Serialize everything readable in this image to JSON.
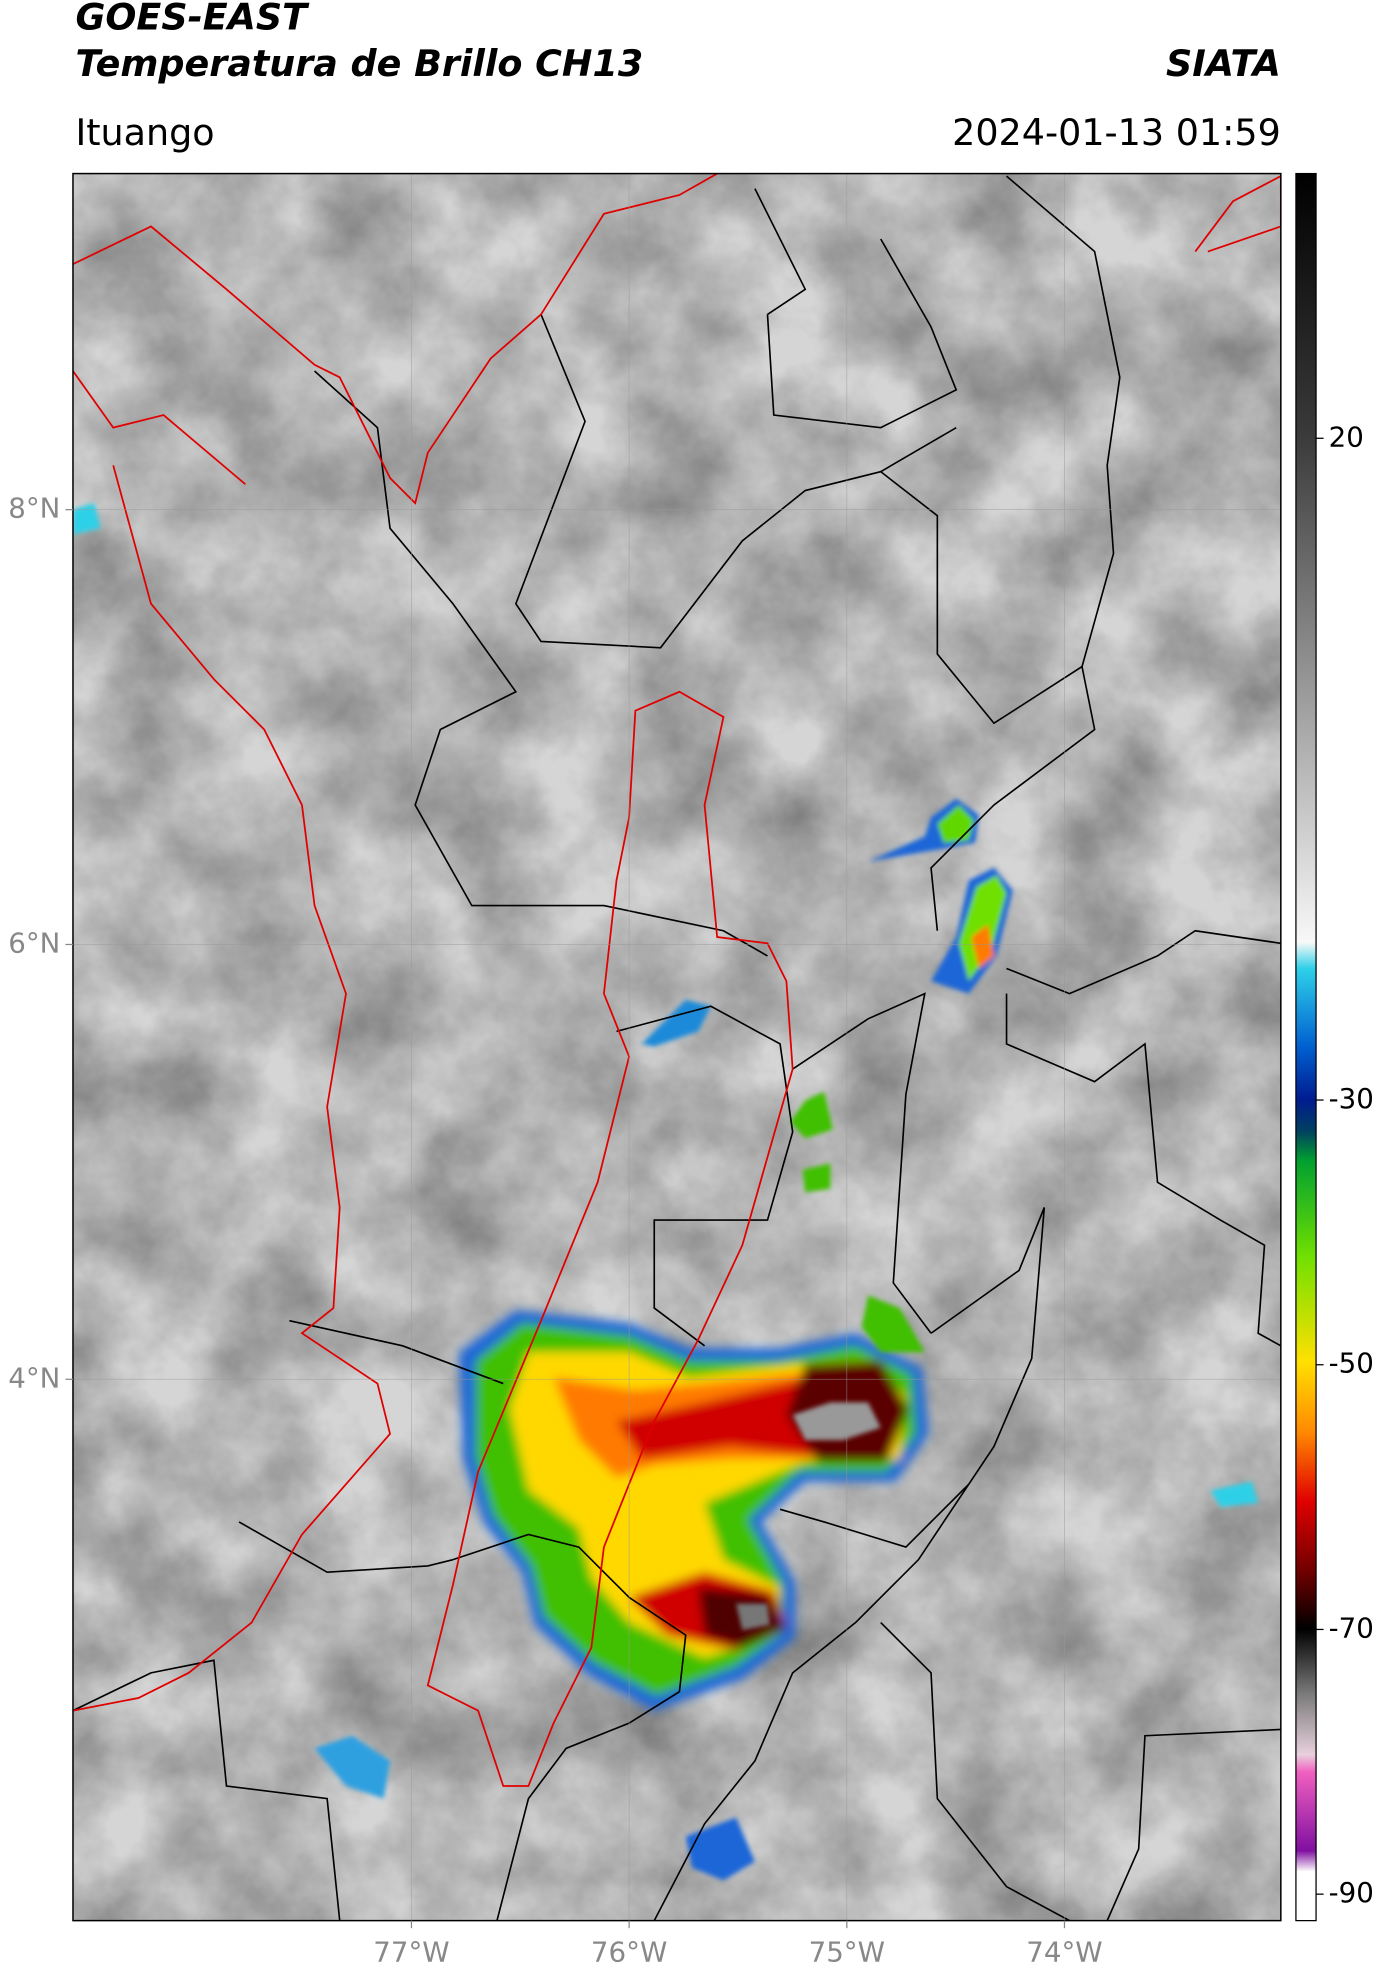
{
  "header": {
    "title": "GOES-EAST",
    "subtitle": "Temperatura de Brillo CH13",
    "source": "SIATA",
    "location": "Ituango",
    "datetime": "2024-01-13 01:59"
  },
  "map": {
    "xlim": [
      -78.555,
      -73.006
    ],
    "ylim": [
      1.51,
      9.546
    ],
    "xticks": [
      {
        "value": -77,
        "label": "77°W"
      },
      {
        "value": -76,
        "label": "76°W"
      },
      {
        "value": -75,
        "label": "75°W"
      },
      {
        "value": -74,
        "label": "74°W"
      }
    ],
    "yticks": [
      {
        "value": 8,
        "label": "8°N"
      },
      {
        "value": 6,
        "label": "6°N"
      },
      {
        "value": 4,
        "label": "4°N"
      }
    ],
    "grid": true
  },
  "colorbar": {
    "lim": [
      -92,
      40
    ],
    "ticks": [
      20,
      -30,
      -50,
      -70,
      -90
    ]
  }
}
